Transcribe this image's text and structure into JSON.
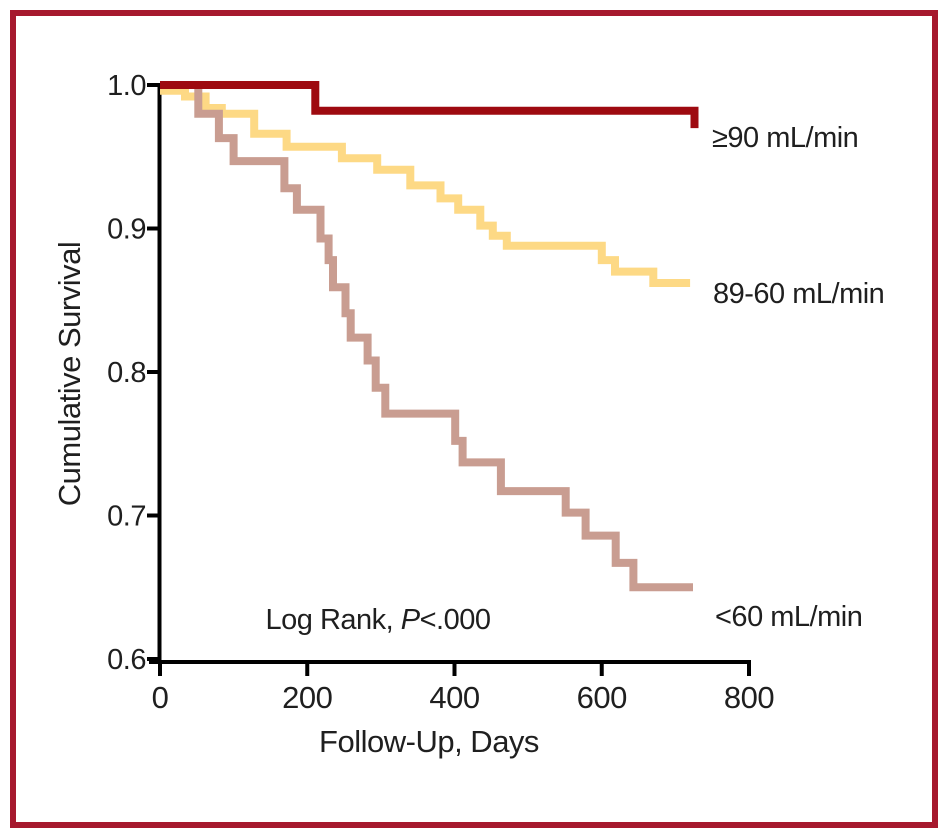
{
  "figure": {
    "frame_color": "#a6192e",
    "background": "#ffffff"
  },
  "chart_data": {
    "type": "line",
    "subtype": "kaplan-meier-step",
    "title": "",
    "xlabel": "Follow-Up, Days",
    "ylabel": "Cumulative Survival",
    "xlim": [
      0,
      800
    ],
    "ylim": [
      0.6,
      1.0
    ],
    "grid": false,
    "legend_position": "right-of-curves",
    "x_ticks": [
      {
        "value": 0,
        "label": "0"
      },
      {
        "value": 200,
        "label": "200"
      },
      {
        "value": 400,
        "label": "400"
      },
      {
        "value": 600,
        "label": "600"
      },
      {
        "value": 800,
        "label": "800"
      }
    ],
    "y_ticks": [
      {
        "value": 1.0,
        "label": "1.0"
      },
      {
        "value": 0.9,
        "label": "0.9"
      },
      {
        "value": 0.8,
        "label": "0.8"
      },
      {
        "value": 0.7,
        "label": "0.7"
      },
      {
        "value": 0.6,
        "label": "0.6"
      }
    ],
    "annotation": {
      "prefix": "Log Rank, ",
      "italic": "P",
      "suffix": "<.000"
    },
    "series": [
      {
        "name": "89-60 mL/min",
        "color": "#fdd985",
        "points": [
          [
            0,
            0.996
          ],
          [
            34,
            0.992
          ],
          [
            62,
            0.984
          ],
          [
            84,
            0.98
          ],
          [
            128,
            0.966
          ],
          [
            172,
            0.957
          ],
          [
            247,
            0.949
          ],
          [
            295,
            0.941
          ],
          [
            340,
            0.93
          ],
          [
            381,
            0.921
          ],
          [
            405,
            0.913
          ],
          [
            435,
            0.902
          ],
          [
            452,
            0.895
          ],
          [
            471,
            0.888
          ],
          [
            600,
            0.878
          ],
          [
            618,
            0.87
          ],
          [
            670,
            0.862
          ]
        ],
        "end_day": 720
      },
      {
        "name": "<60 mL/min",
        "color": "#c99d91",
        "points": [
          [
            0,
            1.0
          ],
          [
            52,
            0.98
          ],
          [
            80,
            0.963
          ],
          [
            100,
            0.947
          ],
          [
            169,
            0.928
          ],
          [
            186,
            0.913
          ],
          [
            218,
            0.893
          ],
          [
            229,
            0.878
          ],
          [
            235,
            0.859
          ],
          [
            252,
            0.841
          ],
          [
            259,
            0.824
          ],
          [
            282,
            0.808
          ],
          [
            293,
            0.789
          ],
          [
            306,
            0.771
          ],
          [
            401,
            0.752
          ],
          [
            411,
            0.737
          ],
          [
            463,
            0.717
          ],
          [
            551,
            0.702
          ],
          [
            578,
            0.686
          ],
          [
            619,
            0.667
          ],
          [
            643,
            0.65
          ]
        ],
        "end_day": 724
      },
      {
        "name": "≥90 mL/min",
        "color": "#9e0a10",
        "points": [
          [
            0,
            1.0
          ],
          [
            211,
            0.982
          ]
        ],
        "end_day": 726,
        "end_tick": 0.97
      }
    ]
  },
  "labels": {
    "series_ge90": "≥90 mL/min",
    "series_89_60": "89-60 mL/min",
    "series_lt60": "<60 mL/min",
    "xlabel": "Follow-Up, Days",
    "ylabel": "Cumulative Survival"
  }
}
